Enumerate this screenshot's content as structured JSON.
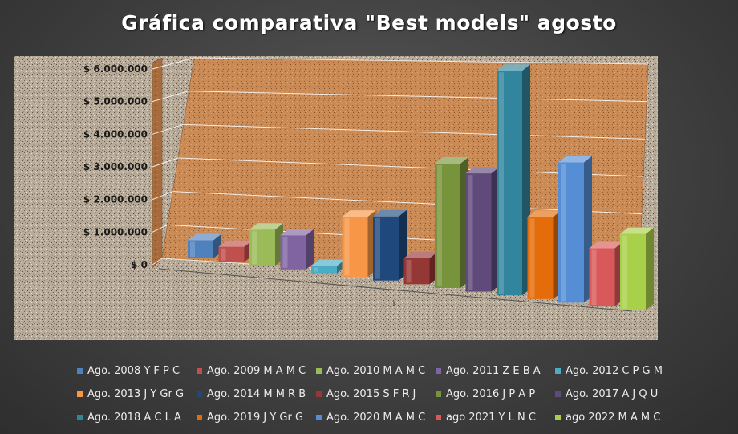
{
  "chart_data": {
    "type": "bar",
    "title": "Gráfica comparativa \"Best models\" agosto",
    "ylim": [
      0,
      6000000
    ],
    "yticks": [
      {
        "value": 0,
        "label": "$ 0"
      },
      {
        "value": 1000000,
        "label": "$ 1.000.000"
      },
      {
        "value": 2000000,
        "label": "$ 2.000.000"
      },
      {
        "value": 3000000,
        "label": "$ 3.000.000"
      },
      {
        "value": 4000000,
        "label": "$ 4.000.000"
      },
      {
        "value": 5000000,
        "label": "$ 5.000.000"
      },
      {
        "value": 6000000,
        "label": "$ 6.000.000"
      }
    ],
    "categories": [
      "1"
    ],
    "grid": true,
    "legend_position": "bottom",
    "series": [
      {
        "name": "Ago. 2008 Y F P C",
        "values": [
          450000
        ],
        "color": "#4f81bd"
      },
      {
        "name": "Ago. 2009 M A M C",
        "values": [
          380000
        ],
        "color": "#c0504d"
      },
      {
        "name": "Ago. 2010 M A M C",
        "values": [
          900000
        ],
        "color": "#9bbb59"
      },
      {
        "name": "Ago. 2011 Z E B A",
        "values": [
          850000
        ],
        "color": "#8064a2"
      },
      {
        "name": "Ago. 2012 C P G M",
        "values": [
          180000
        ],
        "color": "#4bacc6"
      },
      {
        "name": "Ago. 2013 J Y Gr G",
        "values": [
          1500000
        ],
        "color": "#f79646"
      },
      {
        "name": "Ago. 2014 M M R B",
        "values": [
          1600000
        ],
        "color": "#1f497d"
      },
      {
        "name": "Ago. 2015 S F R J",
        "values": [
          650000
        ],
        "color": "#953735"
      },
      {
        "name": "Ago. 2016 J P A P",
        "values": [
          3100000
        ],
        "color": "#77933c"
      },
      {
        "name": "Ago. 2017 A J Q U",
        "values": [
          2950000
        ],
        "color": "#604a7b"
      },
      {
        "name": "Ago. 2018 A C L A",
        "values": [
          5600000
        ],
        "color": "#31859c"
      },
      {
        "name": "Ago. 2019 J Y Gr G",
        "values": [
          2050000
        ],
        "color": "#e46c0a"
      },
      {
        "name": "Ago. 2020 M A M C",
        "values": [
          3500000
        ],
        "color": "#558ed5"
      },
      {
        "name": "ago 2021 Y L N C",
        "values": [
          1450000
        ],
        "color": "#d9595a"
      },
      {
        "name": "ago 2022 M A M C",
        "values": [
          1900000
        ],
        "color": "#a9d04a"
      }
    ]
  }
}
